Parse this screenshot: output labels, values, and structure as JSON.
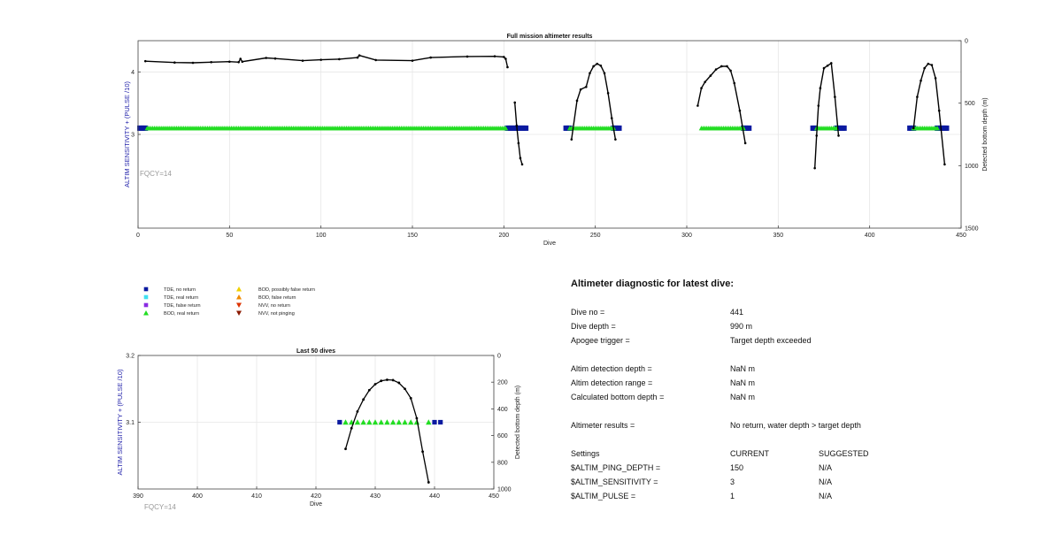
{
  "colors": {
    "tde_no_return": "#0a1aa0",
    "tde_real_return": "#40e0f0",
    "tde_false_return": "#8a2be2",
    "bod_real_return": "#22dd22",
    "bod_possibly_false": "#f0d000",
    "bod_false_return": "#f08a00",
    "nvv_no_return": "#dd3300",
    "nvv_not_pinging": "#8b1a00",
    "axis_left_label": "#2222aa",
    "fqcy": "#999999"
  },
  "legend": {
    "items": [
      {
        "label": "TDE, no return",
        "marker": "square",
        "color_key": "tde_no_return"
      },
      {
        "label": "TDE, real return",
        "marker": "square",
        "color_key": "tde_real_return"
      },
      {
        "label": "TDE, false return",
        "marker": "square",
        "color_key": "tde_false_return"
      },
      {
        "label": "BOD, real return",
        "marker": "triangle-up",
        "color_key": "bod_real_return"
      },
      {
        "label": "BOD, possibly false return",
        "marker": "triangle-up",
        "color_key": "bod_possibly_false"
      },
      {
        "label": "BOD, false return",
        "marker": "triangle-up",
        "color_key": "bod_false_return"
      },
      {
        "label": "NVV, no return",
        "marker": "triangle-down",
        "color_key": "nvv_no_return"
      },
      {
        "label": "NVV, not pinging",
        "marker": "triangle-down",
        "color_key": "nvv_not_pinging"
      }
    ]
  },
  "diagnostic": {
    "title": "Altimeter diagnostic for latest dive:",
    "dive_no": {
      "label": "Dive no =",
      "value": "441"
    },
    "dive_depth": {
      "label": "Dive depth =",
      "value": "990 m"
    },
    "apogee": {
      "label": "Apogee trigger =",
      "value": "Target depth exceeded"
    },
    "detect_depth": {
      "label": "Altim detection depth =",
      "value": "NaN m"
    },
    "detect_range": {
      "label": "Altim detection range =",
      "value": "NaN m"
    },
    "calc_bottom": {
      "label": "Calculated bottom depth =",
      "value": "NaN m"
    },
    "results": {
      "label": "Altimeter results =",
      "value": "No return, water depth > target depth"
    },
    "settings": {
      "label": "Settings",
      "current": "CURRENT",
      "suggested": "SUGGESTED"
    },
    "ping_depth": {
      "label": "$ALTIM_PING_DEPTH =",
      "current": "150",
      "suggested": "N/A"
    },
    "sensitivity": {
      "label": "$ALTIM_SENSITIVITY =",
      "current": "3",
      "suggested": "N/A"
    },
    "pulse": {
      "label": "$ALTIM_PULSE =",
      "current": "1",
      "suggested": "N/A"
    }
  },
  "chart_data": [
    {
      "type": "scatter",
      "title": "Full mission altimeter results",
      "xlabel": "Dive",
      "ylabel": "ALTIM SENSITIVITY + (PULSE /10)",
      "ylabel_right": "Detected bottom depth (m)",
      "annotation": "FQCY=14",
      "xlim": [
        0,
        450
      ],
      "xticks": [
        0,
        50,
        100,
        150,
        200,
        250,
        300,
        350,
        400,
        450
      ],
      "ylim": [
        1.5,
        4.5
      ],
      "yticks": [
        3,
        4
      ],
      "y2lim": [
        1500,
        0
      ],
      "y2ticks": [
        0,
        500,
        1000,
        1500
      ],
      "grid": true,
      "sensitivity_level": 3.1,
      "tde_no_return_dives": [
        [
          1,
          4
        ],
        [
          202,
          212
        ],
        [
          234,
          236
        ],
        [
          260,
          263
        ],
        [
          331,
          334
        ],
        [
          369,
          370
        ],
        [
          382,
          386
        ],
        [
          422,
          424
        ],
        [
          437,
          442
        ]
      ],
      "bod_real_return_dives": [
        [
          5,
          201
        ],
        [
          236,
          260
        ],
        [
          308,
          331
        ],
        [
          371,
          382
        ],
        [
          424,
          437
        ]
      ],
      "bottom_depth_series": [
        {
          "x": [
            4,
            20,
            30,
            40,
            50,
            55,
            56,
            57,
            70,
            75,
            90,
            100,
            110,
            120,
            121,
            130,
            150,
            160,
            180,
            195,
            200,
            201,
            202
          ],
          "y": [
            164,
            175,
            177,
            172,
            168,
            172,
            145,
            168,
            138,
            143,
            160,
            153,
            148,
            135,
            118,
            155,
            160,
            135,
            127,
            125,
            130,
            145,
            212
          ]
        },
        {
          "x": [
            206,
            207,
            208,
            209,
            210
          ],
          "y": [
            495,
            680,
            820,
            940,
            990
          ]
        },
        {
          "x": [
            237,
            240,
            242,
            245,
            247,
            249,
            251,
            253,
            255,
            257,
            259,
            261
          ],
          "y": [
            790,
            480,
            390,
            370,
            260,
            205,
            185,
            200,
            260,
            420,
            620,
            790
          ]
        },
        {
          "x": [
            306,
            308,
            310,
            313,
            316,
            319,
            322,
            324,
            326,
            329,
            332
          ],
          "y": [
            520,
            380,
            330,
            280,
            230,
            205,
            205,
            240,
            340,
            560,
            820
          ]
        },
        {
          "x": [
            370,
            371,
            372,
            373,
            375,
            377,
            379,
            381,
            383
          ],
          "y": [
            1020,
            760,
            520,
            380,
            220,
            200,
            180,
            450,
            760
          ]
        },
        {
          "x": [
            424,
            426,
            428,
            430,
            432,
            434,
            436,
            438,
            441
          ],
          "y": [
            700,
            450,
            320,
            220,
            185,
            195,
            300,
            560,
            990
          ]
        }
      ]
    },
    {
      "type": "scatter",
      "title": "Last 50 dives",
      "xlabel": "Dive",
      "ylabel": "ALTIM SENSITIVITY + (PULSE /10)",
      "ylabel_right": "Detected bottom depth (m)",
      "annotation": "FQCY=14",
      "xlim": [
        390,
        450
      ],
      "xticks": [
        390,
        400,
        410,
        420,
        430,
        440,
        450
      ],
      "ylim": [
        3,
        3.2
      ],
      "yticks": [
        3.1,
        3.2
      ],
      "y2lim": [
        1000,
        0
      ],
      "y2ticks": [
        0,
        200,
        400,
        600,
        800,
        1000
      ],
      "grid": true,
      "sensitivity_level": 3.1,
      "tde_no_return_dives": [
        424,
        440,
        441
      ],
      "bod_real_return_dives": [
        425,
        426,
        427,
        428,
        429,
        430,
        431,
        432,
        433,
        434,
        435,
        436,
        437,
        439
      ],
      "bottom_depth_series": [
        {
          "x": [
            425,
            426,
            427,
            428,
            429,
            430,
            431,
            432,
            433,
            434,
            435,
            436,
            437,
            438,
            439
          ],
          "y": [
            700,
            545,
            420,
            330,
            260,
            215,
            190,
            182,
            185,
            205,
            250,
            320,
            470,
            720,
            950
          ]
        }
      ]
    }
  ]
}
